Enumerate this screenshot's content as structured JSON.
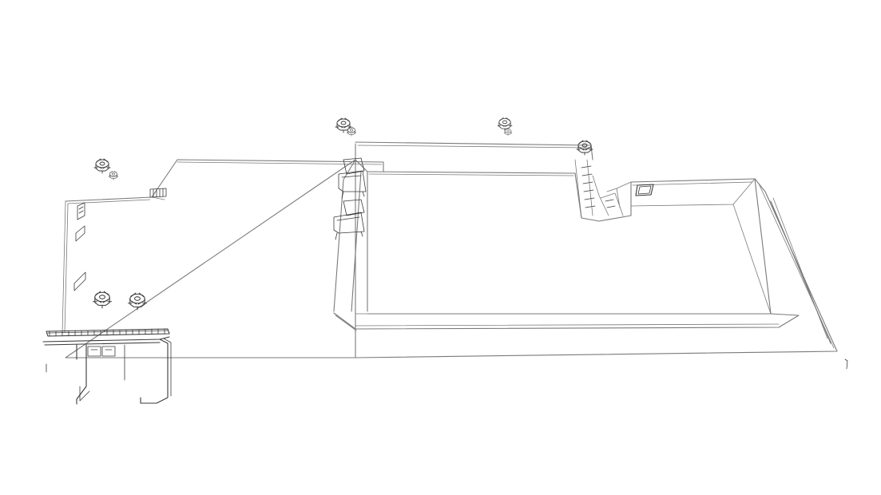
{
  "scene": {
    "background": "#ffffff",
    "line_color": "#7a7a7a",
    "line_color_dark": "#3a3a3a",
    "style": "isometric-wireframe",
    "objects": {
      "rooftop_fans": 9,
      "roof_vents": 4,
      "lounge_chairs": 2,
      "skylights": 1,
      "pergola": 1
    }
  }
}
